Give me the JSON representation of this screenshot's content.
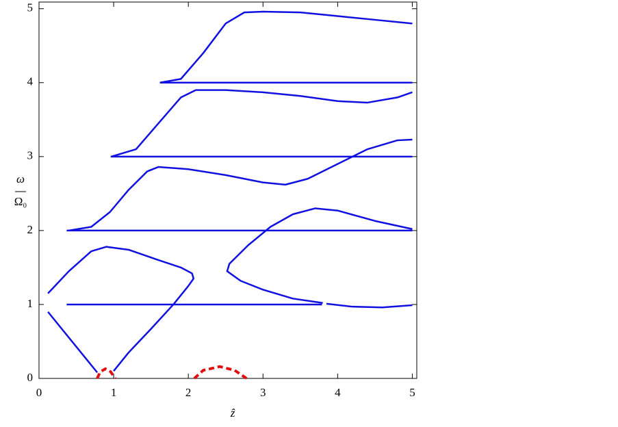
{
  "chart_data": {
    "type": "line",
    "xlabel": "ẑ",
    "ylabel": {
      "numerator": "ω",
      "denominator": "Ω₀"
    },
    "xlim": [
      0,
      5.06
    ],
    "ylim": [
      0,
      5.09
    ],
    "xticks": [
      0,
      1,
      2,
      3,
      4,
      5
    ],
    "yticks": [
      0,
      1,
      2,
      3,
      4,
      5
    ],
    "series": [
      {
        "color": "#1010e0",
        "x": [
          0.37,
          3.79
        ],
        "values": [
          1,
          1
        ]
      },
      {
        "color": "#1010e0",
        "x": [
          3.85,
          4.2,
          4.6,
          5.0
        ],
        "values": [
          1.01,
          0.97,
          0.96,
          0.99
        ]
      },
      {
        "color": "#1010e0",
        "x": [
          0.37,
          5.0
        ],
        "values": [
          2,
          2
        ]
      },
      {
        "color": "#1010e0",
        "x": [
          0.96,
          5.0
        ],
        "values": [
          3,
          3
        ]
      },
      {
        "color": "#1010e0",
        "x": [
          1.62,
          5.0
        ],
        "values": [
          4,
          4
        ]
      },
      {
        "color": "#1010e0",
        "x": [
          0.12,
          0.78
        ],
        "values": [
          0.9,
          0.08
        ]
      },
      {
        "color": "#1010e0",
        "x": [
          0.12,
          0.4,
          0.7,
          0.9,
          1.2,
          1.6,
          1.9,
          2.05,
          2.07,
          2.0,
          1.8,
          1.5,
          1.2,
          1.0
        ],
        "values": [
          1.15,
          1.45,
          1.72,
          1.78,
          1.74,
          1.6,
          1.5,
          1.42,
          1.35,
          1.25,
          1.0,
          0.67,
          0.35,
          0.1
        ]
      },
      {
        "color": "#1010e0",
        "x": [
          3.8,
          3.4,
          3.0,
          2.7,
          2.52,
          2.55,
          2.8,
          3.1,
          3.4,
          3.7,
          4.0,
          4.5,
          5.0
        ],
        "values": [
          1.02,
          1.08,
          1.2,
          1.32,
          1.45,
          1.55,
          1.8,
          2.05,
          2.22,
          2.3,
          2.27,
          2.13,
          2.02
        ]
      },
      {
        "color": "#1010e0",
        "x": [
          0.4,
          0.7,
          0.95,
          1.2,
          1.45,
          1.6,
          2.0,
          2.5,
          3.0,
          3.3,
          3.6,
          4.0,
          4.4,
          4.8,
          5.0
        ],
        "values": [
          2.0,
          2.05,
          2.25,
          2.55,
          2.8,
          2.86,
          2.83,
          2.75,
          2.65,
          2.62,
          2.7,
          2.9,
          3.1,
          3.22,
          3.23
        ]
      },
      {
        "color": "#1010e0",
        "x": [
          0.97,
          1.3,
          1.6,
          1.9,
          2.1,
          2.5,
          3.0,
          3.5,
          4.0,
          4.4,
          4.8,
          5.0
        ],
        "values": [
          3.0,
          3.1,
          3.45,
          3.8,
          3.9,
          3.9,
          3.87,
          3.82,
          3.75,
          3.73,
          3.8,
          3.87
        ]
      },
      {
        "color": "#1010e0",
        "x": [
          1.62,
          1.9,
          2.2,
          2.5,
          2.75,
          3.0,
          3.5,
          4.0,
          4.5,
          5.0
        ],
        "values": [
          4.0,
          4.05,
          4.4,
          4.8,
          4.95,
          4.96,
          4.95,
          4.9,
          4.85,
          4.8
        ]
      },
      {
        "color": "#e01010",
        "dashed": true,
        "x": [
          0.78,
          0.82,
          0.89,
          0.96,
          1.02
        ],
        "values": [
          0,
          0.09,
          0.13,
          0.09,
          0
        ]
      },
      {
        "color": "#e01010",
        "dashed": true,
        "x": [
          2.08,
          2.2,
          2.42,
          2.62,
          2.78
        ],
        "values": [
          0,
          0.11,
          0.16,
          0.11,
          0
        ]
      }
    ]
  }
}
